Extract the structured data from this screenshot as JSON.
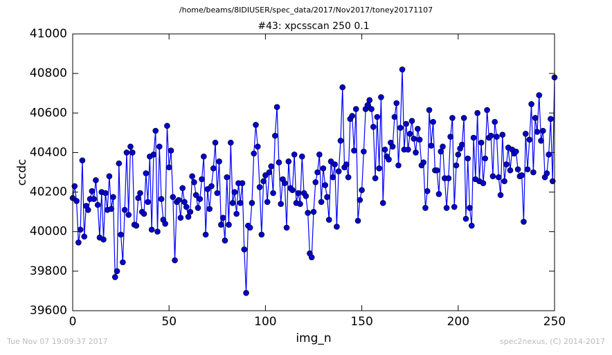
{
  "chart_data": {
    "type": "line",
    "suptitle": "/home/beams/8IDIUSER/spec_data/2017/Nov2017/toney20171107",
    "title": "#43: xpcsscan 250 0.1",
    "xlabel": "img_n",
    "ylabel": "ccdc",
    "footer_left": "Tue Nov 07 19:09:37 2017",
    "footer_right": "spec2nexus, (C) 2014-2017",
    "xlim": [
      0,
      250
    ],
    "ylim": [
      39600,
      41000
    ],
    "xticks": [
      0,
      50,
      100,
      150,
      200,
      250
    ],
    "yticks": [
      39600,
      39800,
      40000,
      40200,
      40400,
      40600,
      40800,
      41000
    ],
    "grid": false,
    "x": [
      0,
      1,
      2,
      3,
      4,
      5,
      6,
      7,
      8,
      9,
      10,
      11,
      12,
      13,
      14,
      15,
      16,
      17,
      18,
      19,
      20,
      21,
      22,
      23,
      24,
      25,
      26,
      27,
      28,
      29,
      30,
      31,
      32,
      33,
      34,
      35,
      36,
      37,
      38,
      39,
      40,
      41,
      42,
      43,
      44,
      45,
      46,
      47,
      48,
      49,
      50,
      51,
      52,
      53,
      54,
      55,
      56,
      57,
      58,
      59,
      60,
      61,
      62,
      63,
      64,
      65,
      66,
      67,
      68,
      69,
      70,
      71,
      72,
      73,
      74,
      75,
      76,
      77,
      78,
      79,
      80,
      81,
      82,
      83,
      84,
      85,
      86,
      87,
      88,
      89,
      90,
      91,
      92,
      93,
      94,
      95,
      96,
      97,
      98,
      99,
      100,
      101,
      102,
      103,
      104,
      105,
      106,
      107,
      108,
      109,
      110,
      111,
      112,
      113,
      114,
      115,
      116,
      117,
      118,
      119,
      120,
      121,
      122,
      123,
      124,
      125,
      126,
      127,
      128,
      129,
      130,
      131,
      132,
      133,
      134,
      135,
      136,
      137,
      138,
      139,
      140,
      141,
      142,
      143,
      144,
      145,
      146,
      147,
      148,
      149,
      150,
      151,
      152,
      153,
      154,
      155,
      156,
      157,
      158,
      159,
      160,
      161,
      162,
      163,
      164,
      165,
      166,
      167,
      168,
      169,
      170,
      171,
      172,
      173,
      174,
      175,
      176,
      177,
      178,
      179,
      180,
      181,
      182,
      183,
      184,
      185,
      186,
      187,
      188,
      189,
      190,
      191,
      192,
      193,
      194,
      195,
      196,
      197,
      198,
      199,
      200,
      201,
      202,
      203,
      204,
      205,
      206,
      207,
      208,
      209,
      210,
      211,
      212,
      213,
      214,
      215,
      216,
      217,
      218,
      219,
      220,
      221,
      222,
      223,
      224,
      225,
      226,
      227,
      228,
      229,
      230,
      231,
      232,
      233,
      234,
      235,
      236,
      237,
      238,
      239,
      240,
      241,
      242,
      243,
      244,
      245,
      246,
      247,
      248,
      249,
      250
    ],
    "series": [
      {
        "color": "#0000ff",
        "marker_color": "#0000cc",
        "values": [
          40170,
          40230,
          40155,
          39945,
          40010,
          40360,
          39975,
          40130,
          40110,
          40165,
          40205,
          40165,
          40260,
          40135,
          39970,
          40200,
          39960,
          40195,
          40110,
          40280,
          40115,
          40175,
          39770,
          39800,
          40345,
          39985,
          39845,
          40110,
          40400,
          40085,
          40430,
          40400,
          40035,
          40030,
          40170,
          40195,
          40100,
          40090,
          40295,
          40150,
          40380,
          40010,
          40390,
          40510,
          40000,
          40430,
          40165,
          40060,
          40040,
          40535,
          40325,
          40410,
          40175,
          39855,
          40150,
          40160,
          40070,
          40220,
          40150,
          40125,
          40075,
          40100,
          40280,
          40250,
          40185,
          40120,
          40165,
          40265,
          40380,
          39985,
          40215,
          40115,
          40230,
          40320,
          40450,
          40195,
          40355,
          40035,
          40070,
          39955,
          40275,
          40035,
          40450,
          40145,
          40200,
          40090,
          40245,
          40145,
          40245,
          39910,
          39690,
          40030,
          40020,
          40145,
          40395,
          40540,
          40430,
          40225,
          39985,
          40255,
          40285,
          40150,
          40300,
          40330,
          40195,
          40485,
          40630,
          40350,
          40140,
          40265,
          40245,
          40020,
          40355,
          40220,
          40210,
          40390,
          40145,
          40195,
          40140,
          40380,
          40195,
          40180,
          40095,
          39890,
          39870,
          40100,
          40250,
          40300,
          40390,
          40150,
          40320,
          40235,
          40175,
          40060,
          40355,
          40275,
          40340,
          40025,
          40305,
          40460,
          40730,
          40325,
          40340,
          40275,
          40570,
          40585,
          40410,
          40620,
          40055,
          40160,
          40210,
          40405,
          40620,
          40640,
          40665,
          40620,
          40530,
          40270,
          40580,
          40320,
          40680,
          40145,
          40415,
          40380,
          40365,
          40450,
          40430,
          40580,
          40650,
          40335,
          40525,
          40820,
          40415,
          40545,
          40415,
          40495,
          40560,
          40470,
          40400,
          40520,
          40465,
          40335,
          40350,
          40120,
          40205,
          40615,
          40435,
          40555,
          40310,
          40310,
          40190,
          40405,
          40430,
          40270,
          40120,
          40270,
          40480,
          40575,
          40125,
          40335,
          40390,
          40420,
          40440,
          40575,
          40065,
          40370,
          40120,
          40030,
          40475,
          40265,
          40600,
          40255,
          40450,
          40245,
          40370,
          40615,
          40475,
          40485,
          40280,
          40555,
          40480,
          40275,
          40185,
          40490,
          40255,
          40340,
          40425,
          40310,
          40415,
          40395,
          40405,
          40315,
          40280,
          40285,
          40050,
          40495,
          40315,
          40465,
          40645,
          40300,
          40575,
          40505,
          40690,
          40460,
          40510,
          40275,
          40295,
          40390,
          40570,
          40255,
          40780
        ]
      }
    ]
  }
}
